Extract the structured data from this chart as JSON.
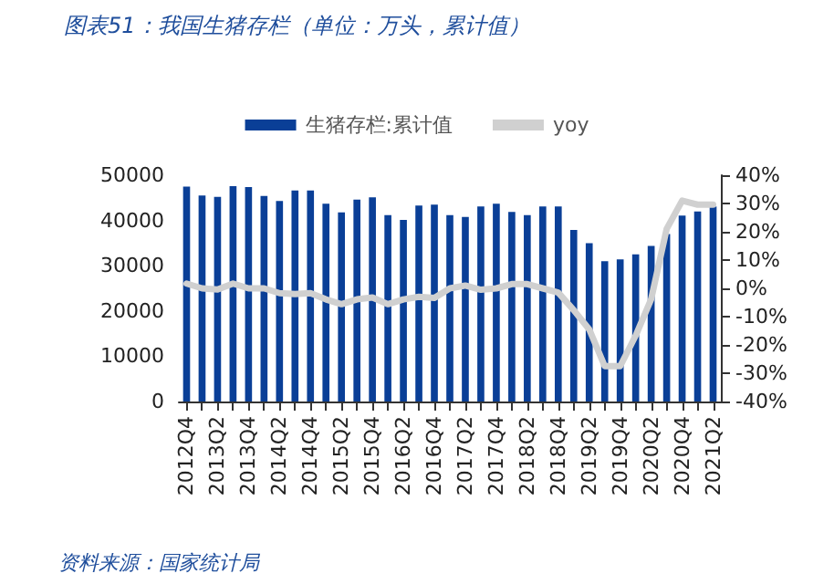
{
  "chart_data": {
    "type": "bar",
    "title": "图表51：我国生猪存栏（单位：万头，累计值）",
    "categories": [
      "2012Q4",
      null,
      "2013Q2",
      null,
      "2013Q4",
      null,
      "2014Q2",
      null,
      "2014Q4",
      null,
      "2015Q2",
      null,
      "2015Q4",
      null,
      "2016Q2",
      null,
      "2016Q4",
      null,
      "2017Q2",
      null,
      "2017Q4",
      null,
      "2018Q2",
      null,
      "2018Q4",
      null,
      "2019Q2",
      null,
      "2019Q4",
      null,
      "2020Q2",
      null,
      "2020Q4",
      null,
      "2021Q2"
    ],
    "series": [
      {
        "name": "生猪存栏:累计值",
        "color": "#0a3f97",
        "values": [
          47500,
          45500,
          45200,
          47600,
          47400,
          45400,
          44300,
          46600,
          46600,
          43700,
          41800,
          44600,
          45100,
          41200,
          40100,
          43300,
          43500,
          41200,
          40800,
          43100,
          43700,
          41900,
          41200,
          43100,
          43100,
          37900,
          35000,
          31000,
          31400,
          32500,
          34400,
          37000,
          41100,
          42000,
          43100
        ]
      },
      {
        "name": "yoy",
        "type": "line",
        "axis": "y2",
        "color": "#d0d0d0",
        "values": [
          1.7,
          0,
          -0.4,
          1.7,
          0,
          0,
          -1.7,
          -2,
          -1.7,
          -3.9,
          -5.6,
          -3.9,
          -3.2,
          -5.6,
          -3.9,
          -3,
          -3.4,
          0,
          1,
          -0.5,
          0,
          1.5,
          1.5,
          0,
          -1.5,
          -7.7,
          -14.5,
          -27.5,
          -27.5,
          -16.7,
          -3.8,
          21,
          31,
          29.6,
          29.6
        ]
      }
    ],
    "ylim": [
      0,
      50000
    ],
    "yticks": [
      0,
      10000,
      20000,
      30000,
      40000,
      50000
    ],
    "y2lim": [
      -40,
      40
    ],
    "y2ticks": [
      {
        "value": -40,
        "label": "-40%"
      },
      {
        "value": -30,
        "label": "-30%"
      },
      {
        "value": -20,
        "label": "-20%"
      },
      {
        "value": -10,
        "label": "-10%"
      },
      {
        "value": 0,
        "label": "0%"
      },
      {
        "value": 10,
        "label": "10%"
      },
      {
        "value": 20,
        "label": "20%"
      },
      {
        "value": 30,
        "label": "30%"
      },
      {
        "value": 40,
        "label": "40%"
      }
    ],
    "grid": false,
    "legend": "top",
    "marker": "none",
    "line_style": "solid",
    "annotations": [
      "资料来源：国家统计局"
    ]
  }
}
